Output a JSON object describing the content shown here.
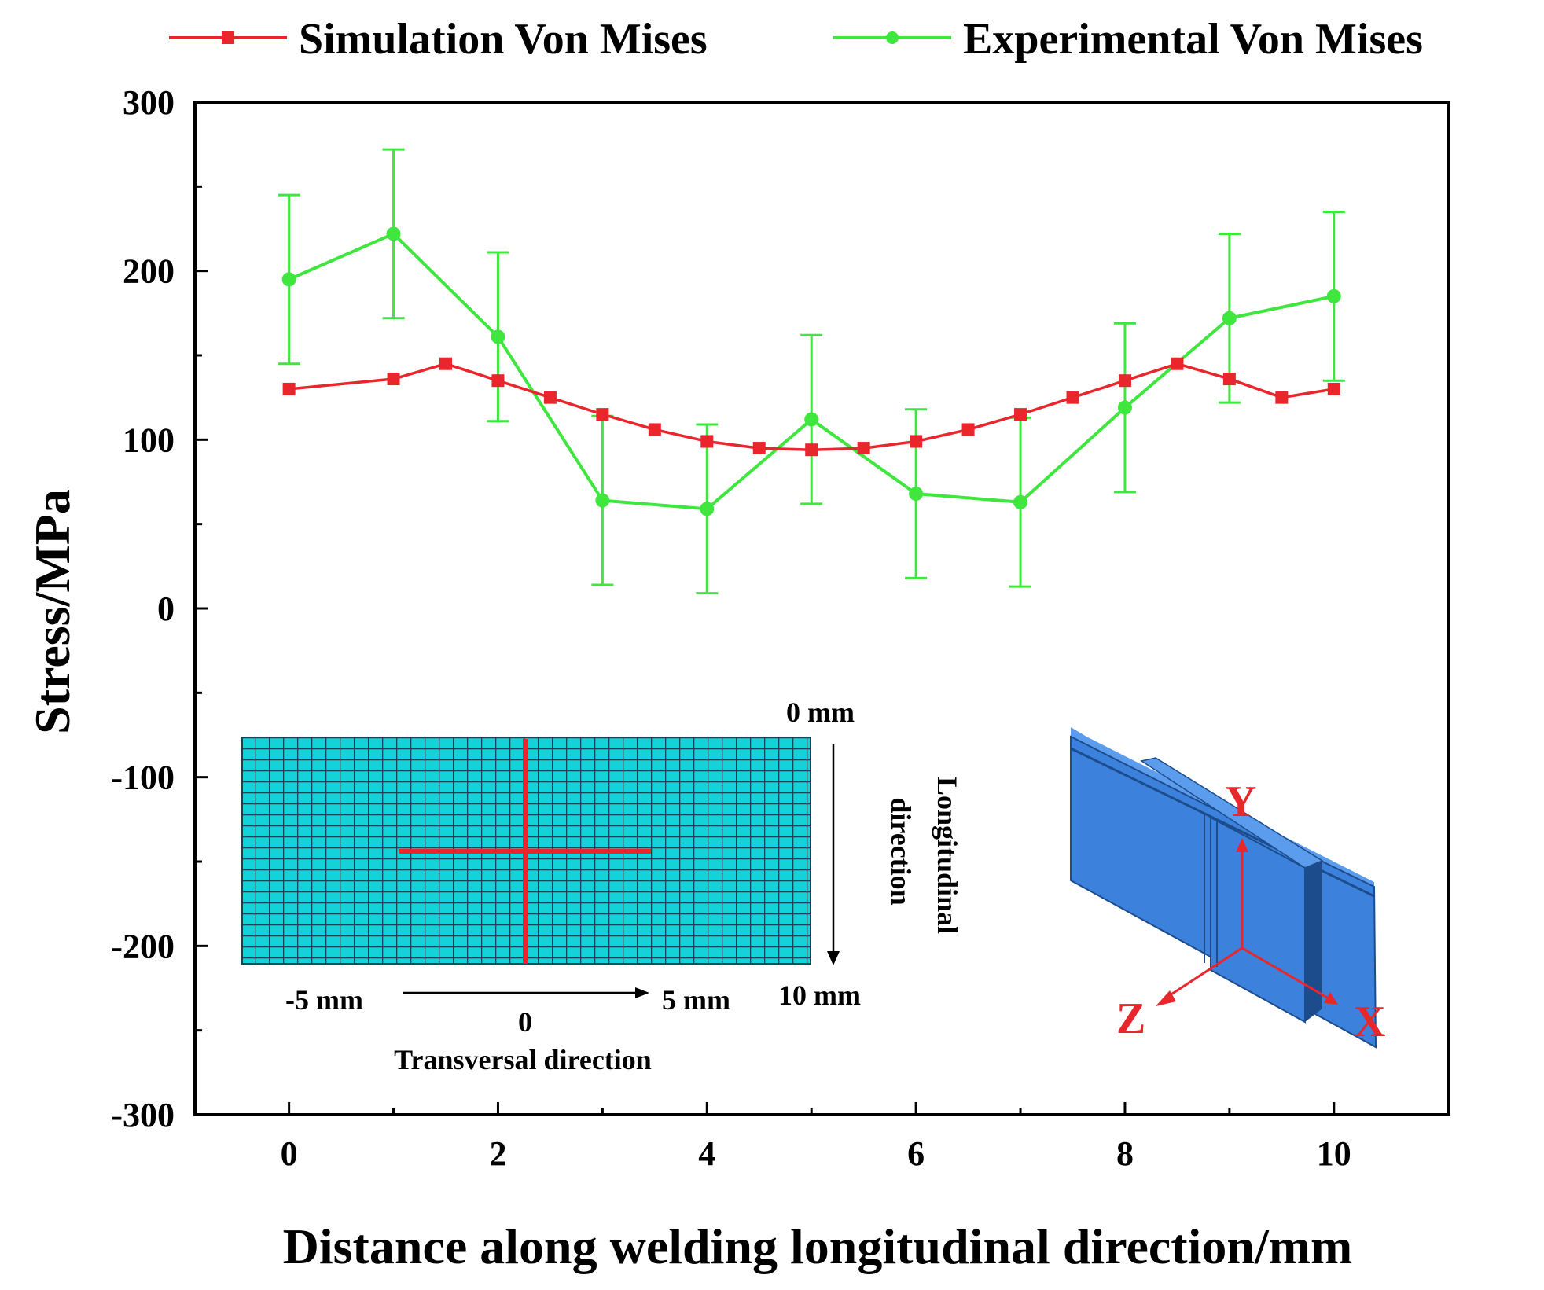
{
  "chart_data": {
    "type": "line",
    "title": "",
    "xlabel": "Distance along welding longitudinal direction/mm",
    "ylabel": "Stress/MPa",
    "xlim": [
      -0.9,
      11.1
    ],
    "ylim": [
      -300,
      300
    ],
    "x_ticks": [
      0,
      2,
      4,
      6,
      8,
      10
    ],
    "x_tick_labels": [
      "0",
      "2",
      "4",
      "6",
      "8",
      "10"
    ],
    "y_ticks": [
      -300,
      -200,
      -100,
      0,
      100,
      200,
      300
    ],
    "y_tick_labels": [
      "-300",
      "-200",
      "-100",
      "0",
      "100",
      "200",
      "300"
    ],
    "legend_position": "top",
    "series": [
      {
        "name": "Simulation Von Mises",
        "color": "#e8262b",
        "marker": "square",
        "x": [
          0,
          1,
          1.5,
          2,
          2.5,
          3,
          3.5,
          4,
          4.5,
          5,
          5.5,
          6,
          6.5,
          7,
          7.5,
          8,
          8.5,
          9,
          9.5,
          10
        ],
        "y": [
          130,
          136,
          145,
          135,
          125,
          115,
          106,
          99,
          95,
          94,
          95,
          99,
          106,
          115,
          125,
          135,
          145,
          136,
          125,
          130
        ]
      },
      {
        "name": "Experimental Von Mises",
        "color": "#3ee63e",
        "marker": "circle",
        "x": [
          0,
          1,
          2,
          3,
          4,
          5,
          6,
          7,
          8,
          9,
          10
        ],
        "y": [
          195,
          222,
          161,
          64,
          59,
          112,
          68,
          63,
          119,
          172,
          185
        ],
        "error": [
          50,
          50,
          50,
          50,
          50,
          50,
          50,
          50,
          50,
          50,
          50
        ]
      }
    ]
  },
  "inset_mesh": {
    "top_label": "0 mm",
    "bottom_label": "10 mm",
    "longitudinal_label_1": "Longitudinal",
    "longitudinal_label_2": "direction",
    "left_label": "-5 mm",
    "center_label": "0",
    "right_label": "5 mm",
    "transversal_label": "Transversal direction",
    "mesh_color": "#14d3d8",
    "line_color": "#e8262b"
  },
  "inset_model": {
    "axis_y": "Y",
    "axis_z": "Z",
    "axis_x": "X",
    "plate_color": "#3c82dc",
    "axis_color": "#e8262b"
  }
}
